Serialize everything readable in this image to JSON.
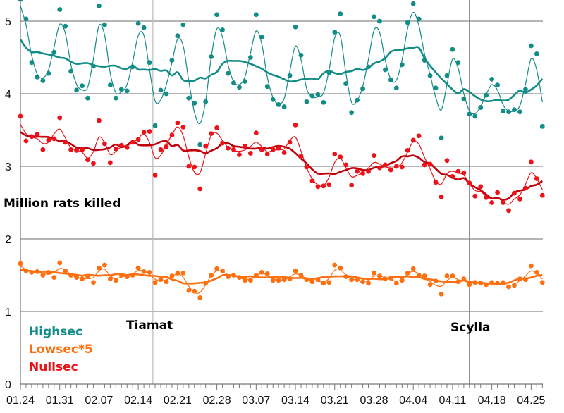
{
  "chart_data": {
    "type": "scatter",
    "title": "",
    "ylabel": "Million rats killed",
    "xlabel": "",
    "ylim": [
      0,
      5.3
    ],
    "yticks": [
      "0",
      "1",
      "2",
      "3",
      "4",
      "5"
    ],
    "xtick_labels": [
      "01.24",
      "01.31",
      "02.07",
      "02.14",
      "02.21",
      "02.28",
      "03.07",
      "03.14",
      "03.21",
      "03.28",
      "04.04",
      "04.11",
      "04.18",
      "04.25"
    ],
    "grid": true,
    "legend_position": "bottom-left",
    "colors": {
      "highsec": "#128c87",
      "lowsec": "#ff6f0f",
      "nullsec": "#ee1118",
      "nullsec_trend": "#c0000c",
      "grid": "#8a8a8a"
    },
    "annotations": [
      {
        "label": "Tiamat",
        "day": 23.6
      },
      {
        "label": "Scylla",
        "day": 80
      }
    ],
    "series": [
      {
        "name": "Highsec",
        "key": "highsec",
        "values": [
          5.3,
          5.03,
          4.43,
          4.23,
          4.18,
          4.28,
          4.57,
          5.16,
          4.93,
          4.31,
          4.05,
          4.11,
          3.94,
          4.38,
          5.21,
          4.95,
          4.12,
          3.94,
          4.06,
          4.04,
          4.37,
          4.97,
          4.91,
          4.43,
          3.56,
          4.05,
          4.0,
          4.46,
          4.8,
          4.95,
          3.94,
          3.87,
          3.3,
          3.89,
          4.51,
          5.09,
          4.88,
          4.28,
          4.15,
          4.09,
          4.17,
          4.5,
          5.09,
          4.78,
          4.1,
          3.92,
          3.85,
          3.82,
          4.25,
          4.92,
          4.53,
          3.89,
          3.97,
          3.99,
          3.88,
          4.29,
          4.85,
          5.1,
          4.14,
          3.74,
          3.91,
          4.07,
          4.37,
          5.06,
          5.0,
          4.33,
          4.19,
          4.08,
          4.4,
          4.98,
          5.24,
          5.03,
          4.46,
          4.25,
          4.08,
          3.39,
          4.25,
          4.61,
          4.43,
          3.93,
          3.72,
          3.69,
          3.81,
          3.98,
          4.2,
          4.12,
          3.76,
          3.75,
          3.78,
          3.75,
          4.06,
          4.66,
          4.55,
          3.55
        ]
      },
      {
        "name": "Lowsec*5",
        "key": "lowsec",
        "values": [
          1.66,
          1.56,
          1.54,
          1.55,
          1.5,
          1.54,
          1.47,
          1.67,
          1.56,
          1.5,
          1.47,
          1.45,
          1.48,
          1.4,
          1.6,
          1.64,
          1.45,
          1.43,
          1.5,
          1.48,
          1.5,
          1.6,
          1.55,
          1.54,
          1.4,
          1.44,
          1.41,
          1.49,
          1.53,
          1.53,
          1.29,
          1.28,
          1.19,
          1.39,
          1.5,
          1.59,
          1.56,
          1.48,
          1.5,
          1.47,
          1.43,
          1.43,
          1.5,
          1.54,
          1.52,
          1.43,
          1.43,
          1.44,
          1.45,
          1.56,
          1.5,
          1.44,
          1.41,
          1.44,
          1.39,
          1.4,
          1.64,
          1.6,
          1.48,
          1.44,
          1.44,
          1.41,
          1.39,
          1.53,
          1.49,
          1.45,
          1.46,
          1.39,
          1.43,
          1.53,
          1.59,
          1.5,
          1.49,
          1.37,
          1.42,
          1.24,
          1.49,
          1.49,
          1.41,
          1.45,
          1.37,
          1.4,
          1.39,
          1.37,
          1.4,
          1.39,
          1.4,
          1.34,
          1.36,
          1.45,
          1.44,
          1.63,
          1.54,
          1.4
        ]
      },
      {
        "name": "Nullsec",
        "key": "nullsec",
        "values": [
          3.69,
          3.35,
          3.41,
          3.44,
          3.23,
          3.36,
          3.38,
          3.67,
          3.33,
          3.23,
          3.22,
          3.23,
          3.09,
          3.04,
          3.63,
          3.31,
          3.05,
          3.24,
          3.29,
          3.26,
          3.33,
          3.37,
          3.47,
          3.48,
          2.88,
          3.23,
          3.27,
          3.43,
          3.6,
          3.54,
          3.0,
          2.99,
          2.69,
          3.28,
          3.45,
          3.53,
          3.32,
          3.25,
          3.23,
          3.16,
          3.28,
          3.18,
          3.46,
          3.23,
          3.17,
          3.23,
          3.25,
          3.19,
          3.33,
          3.57,
          3.14,
          2.99,
          2.8,
          2.72,
          2.73,
          2.75,
          3.17,
          3.13,
          3.02,
          2.74,
          2.93,
          2.9,
          2.93,
          3.15,
          2.98,
          3.02,
          2.95,
          3.0,
          2.99,
          3.22,
          3.36,
          3.42,
          3.02,
          3.03,
          2.78,
          2.58,
          3.08,
          2.86,
          2.93,
          2.91,
          2.77,
          2.59,
          2.72,
          2.57,
          2.5,
          2.64,
          2.5,
          2.39,
          2.63,
          2.55,
          2.7,
          3.06,
          2.83,
          2.6
        ]
      }
    ]
  }
}
